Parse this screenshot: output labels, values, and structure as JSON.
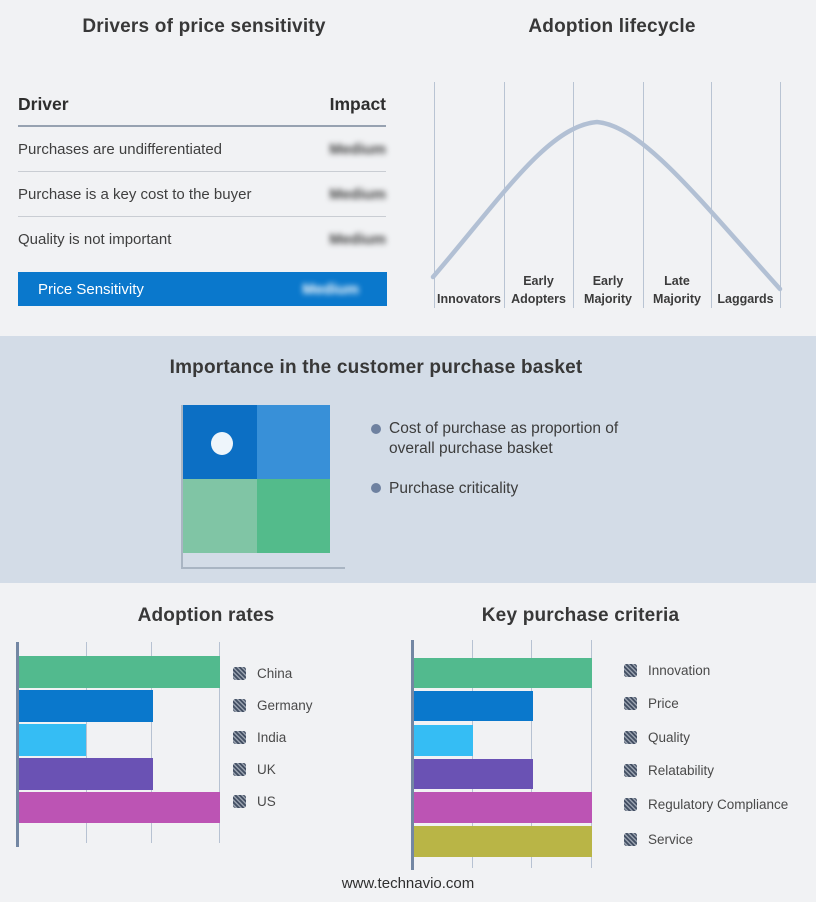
{
  "page": {
    "background": "#f1f2f4",
    "band_background": "#d3dce7",
    "footer_url": "www.technavio.com"
  },
  "drivers_panel": {
    "title": "Drivers of price sensitivity",
    "table": {
      "col_driver": "Driver",
      "col_impact": "Impact",
      "rows": [
        {
          "driver": "Purchases are undifferentiated",
          "impact": "Medium"
        },
        {
          "driver": "Purchase is a key cost to the buyer",
          "impact": "Medium"
        },
        {
          "driver": "Quality is not important",
          "impact": "Medium"
        }
      ],
      "highlight": {
        "driver": "Price Sensitivity",
        "impact": "Medium",
        "color": "#0a78cc"
      }
    }
  },
  "basket_panel": {
    "title": "Importance in the customer purchase basket",
    "bullets": [
      "Cost of purchase as proportion of overall purchase basket",
      "Purchase criticality"
    ],
    "quadrant_colors": {
      "top_left": "#0c6fc4",
      "top_right": "#3890d8",
      "bottom_left": "#80c5a5",
      "bottom_right": "#53bb8b"
    }
  },
  "chart_data": [
    {
      "type": "line",
      "title": "Adoption lifecycle",
      "categories": [
        "Innovators",
        "Early Adopters",
        "Early Majority",
        "Late Majority",
        "Laggards"
      ],
      "y_values_normalized": [
        0.05,
        0.55,
        1.0,
        0.6,
        0.05
      ],
      "shape": "bell curve peaking in Early Majority",
      "line_color": "#b2c0d4",
      "grid": "vertical category separators only, axes unlabeled"
    },
    {
      "type": "bar",
      "orientation": "horizontal",
      "title": "Adoption rates",
      "categories": [
        "China",
        "Germany",
        "India",
        "UK",
        "US"
      ],
      "values": [
        3,
        2,
        1,
        2,
        3
      ],
      "xlim": [
        0,
        3
      ],
      "colors": [
        "#52ba8e",
        "#0a78cc",
        "#35bdf4",
        "#6a52b4",
        "#bc54b4"
      ],
      "xlabel": "",
      "ylabel": "",
      "tick_labels_hidden": true,
      "legend_position": "right"
    },
    {
      "type": "bar",
      "orientation": "horizontal",
      "title": "Key purchase criteria",
      "categories": [
        "Innovation",
        "Price",
        "Quality",
        "Relatability",
        "Regulatory Compliance",
        "Service"
      ],
      "values": [
        3,
        2,
        1,
        2,
        3,
        3
      ],
      "xlim": [
        0,
        3
      ],
      "colors": [
        "#52ba8e",
        "#0a78cc",
        "#35bdf4",
        "#6a52b4",
        "#bc54b4",
        "#b9b546"
      ],
      "xlabel": "",
      "ylabel": "",
      "tick_labels_hidden": true,
      "legend_position": "right"
    }
  ]
}
